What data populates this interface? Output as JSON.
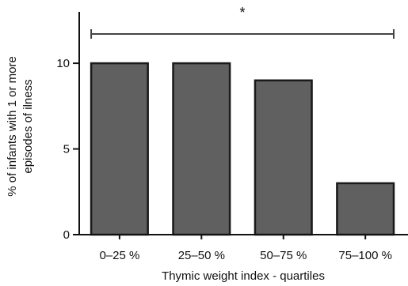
{
  "chart_data": {
    "type": "bar",
    "title": "",
    "xlabel": "Thymic weight index - quartiles",
    "ylabel": [
      "% of infants with 1 or more",
      "episodes of ilness"
    ],
    "categories": [
      "0–25 %",
      "25–50 %",
      "50–75 %",
      "75–100 %"
    ],
    "values": [
      10,
      10,
      9,
      3
    ],
    "ylim": [
      0,
      13
    ],
    "yticks": [
      0,
      5,
      10
    ],
    "ytick_labels": [
      "0",
      "5",
      "10"
    ],
    "grid": false,
    "legend": "none",
    "annotations": [
      {
        "type": "significance-bracket",
        "from_category": "0–25 %",
        "to_category": "75–100 %",
        "label": "*"
      }
    ]
  },
  "colors": {
    "bar_fill": "#606060",
    "bar_stroke": "#1a1a1a",
    "axis": "#111111",
    "bracket": "#444444"
  }
}
